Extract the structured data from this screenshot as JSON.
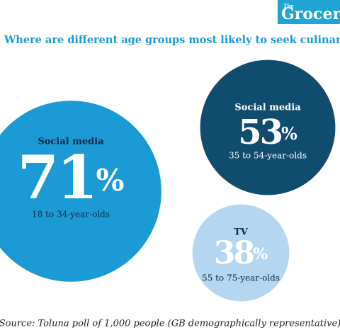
{
  "brand": {
    "small": "The",
    "name": "Grocer"
  },
  "chart_data": {
    "type": "bubble",
    "title": "Where are different age groups most likely to seek culinary inspiration?",
    "source": "Source: Toluna poll of 1,000 people (GB demographically representative)",
    "labels": [
      "Social media",
      "Social media",
      "TV"
    ],
    "categories": [
      "18 to 34-year-olds",
      "35 to 54-year-olds",
      "55 to 75-year-olds"
    ],
    "values": [
      71,
      53,
      38
    ],
    "value_labels": [
      "71%",
      "53%",
      "38%"
    ],
    "colors": [
      "#1b9ad6",
      "#104c6e",
      "#b5d6f0"
    ]
  }
}
